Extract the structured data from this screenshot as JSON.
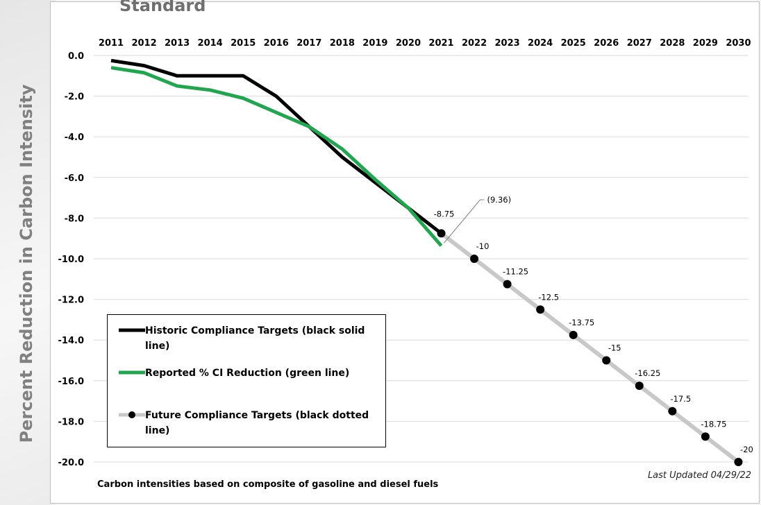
{
  "page": {
    "partial_title": "Standard",
    "y_axis_title": "Percent Reduction in Carbon Intensity",
    "footnote": "Carbon intensities based on composite of gasoline and diesel fuels",
    "last_updated": "Last Updated 04/29/22"
  },
  "legend": {
    "historic": "Historic Compliance Targets (black solid line)",
    "reported": "Reported % CI Reduction (green line)",
    "future": "Future Compliance Targets (black dotted line)"
  },
  "colors": {
    "historic": "#000000",
    "reported": "#21a650",
    "future_line": "#c8c8c8",
    "future_marker": "#000000",
    "grid": "#d9d9d9",
    "reported_annotation": "#21a650",
    "leader_line": "#7f7f7f"
  },
  "chart_data": {
    "type": "line",
    "ylabel": "Percent Reduction in Carbon Intensity",
    "ylim": [
      -20.0,
      0.0
    ],
    "y_ticks": [
      "0.0",
      "-2.0",
      "-4.0",
      "-6.0",
      "-8.0",
      "-10.0",
      "-12.0",
      "-14.0",
      "-16.0",
      "-18.0",
      "-20.0"
    ],
    "x_axis_position": "top",
    "categories": [
      "2011",
      "2012",
      "2013",
      "2014",
      "2015",
      "2016",
      "2017",
      "2018",
      "2019",
      "2020",
      "2021",
      "2022",
      "2023",
      "2024",
      "2025",
      "2026",
      "2027",
      "2028",
      "2029",
      "2030"
    ],
    "grid": true,
    "legend_position": "bottom-left",
    "series": [
      {
        "name": "Historic Compliance Targets (black solid line)",
        "x": [
          "2011",
          "2012",
          "2013",
          "2014",
          "2015",
          "2016",
          "2017",
          "2018",
          "2019",
          "2020",
          "2021"
        ],
        "values": [
          -0.25,
          -0.5,
          -1.0,
          -1.0,
          -1.0,
          -2.0,
          -3.5,
          -5.0,
          -6.25,
          -7.5,
          -8.75
        ]
      },
      {
        "name": "Reported % CI Reduction (green line)",
        "x": [
          "2011",
          "2012",
          "2013",
          "2014",
          "2015",
          "2016",
          "2017",
          "2018",
          "2019",
          "2020",
          "2021"
        ],
        "values": [
          -0.6,
          -0.85,
          -1.5,
          -1.7,
          -2.1,
          -2.8,
          -3.5,
          -4.6,
          -6.1,
          -7.5,
          -9.36
        ]
      },
      {
        "name": "Future Compliance Targets (black dotted line)",
        "x": [
          "2021",
          "2022",
          "2023",
          "2024",
          "2025",
          "2026",
          "2027",
          "2028",
          "2029",
          "2030"
        ],
        "values": [
          -8.75,
          -10,
          -11.25,
          -12.5,
          -13.75,
          -15,
          -16.25,
          -17.5,
          -18.75,
          -20
        ]
      }
    ],
    "annotations": {
      "historic_end": "-8.75",
      "reported_end": "(9.36)",
      "future_labels": [
        "-10",
        "-11.25",
        "-12.5",
        "-13.75",
        "-15",
        "-16.25",
        "-17.5",
        "-18.75",
        "-20"
      ]
    }
  }
}
